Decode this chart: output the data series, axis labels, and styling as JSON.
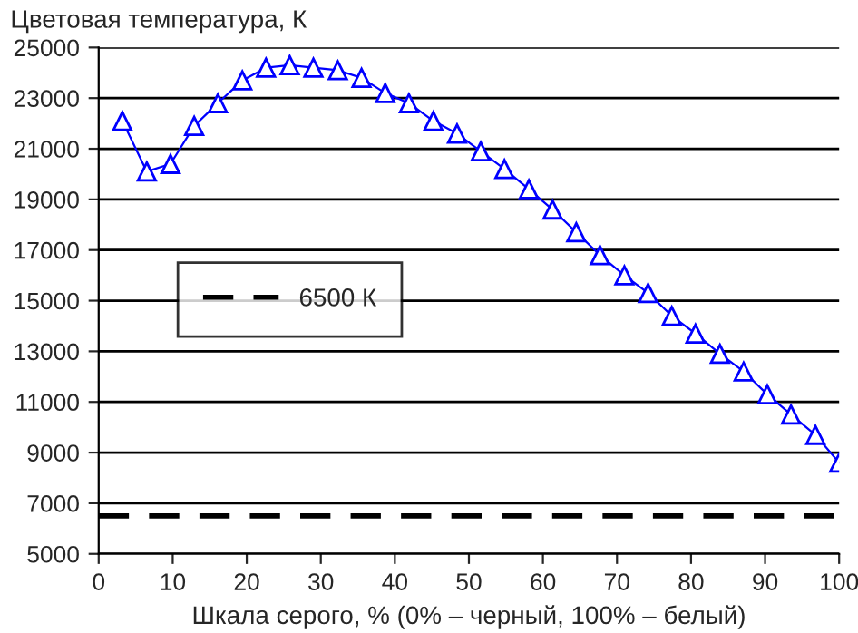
{
  "chart_data": {
    "type": "line",
    "ylabel": "Цветовая температура, К",
    "xlabel": "Шкала серого, % (0% – черный, 100% – белый)",
    "x": [
      3.2,
      6.5,
      9.7,
      12.9,
      16.1,
      19.4,
      22.6,
      25.8,
      29.0,
      32.3,
      35.5,
      38.7,
      41.9,
      45.2,
      48.4,
      51.6,
      54.8,
      58.1,
      61.3,
      64.5,
      67.7,
      71.0,
      74.2,
      77.4,
      80.6,
      83.9,
      87.1,
      90.3,
      93.5,
      96.8,
      100
    ],
    "series": [
      {
        "color": "#0000ff",
        "values": [
          22100,
          20100,
          20400,
          21900,
          22800,
          23700,
          24200,
          24300,
          24200,
          24100,
          23800,
          23200,
          22800,
          22100,
          21600,
          20900,
          20200,
          19400,
          18600,
          17700,
          16800,
          16000,
          15300,
          14400,
          13700,
          12900,
          12200,
          11300,
          10500,
          9700,
          8600
        ]
      }
    ],
    "ref_lines": [
      {
        "axis": "y",
        "value": 6500,
        "label": "6500 К",
        "color": "#000000",
        "line_style": "dashed"
      }
    ],
    "marker": "triangle",
    "line_style": "solid",
    "xlim": [
      0,
      100
    ],
    "xticks": [
      0,
      10,
      20,
      30,
      40,
      50,
      60,
      70,
      80,
      90,
      100
    ],
    "ylim": [
      5000,
      25000
    ],
    "yticks": [
      5000,
      7000,
      9000,
      11000,
      13000,
      15000,
      17000,
      19000,
      21000,
      23000,
      25000
    ],
    "grid": "y",
    "legend": "upper left"
  }
}
